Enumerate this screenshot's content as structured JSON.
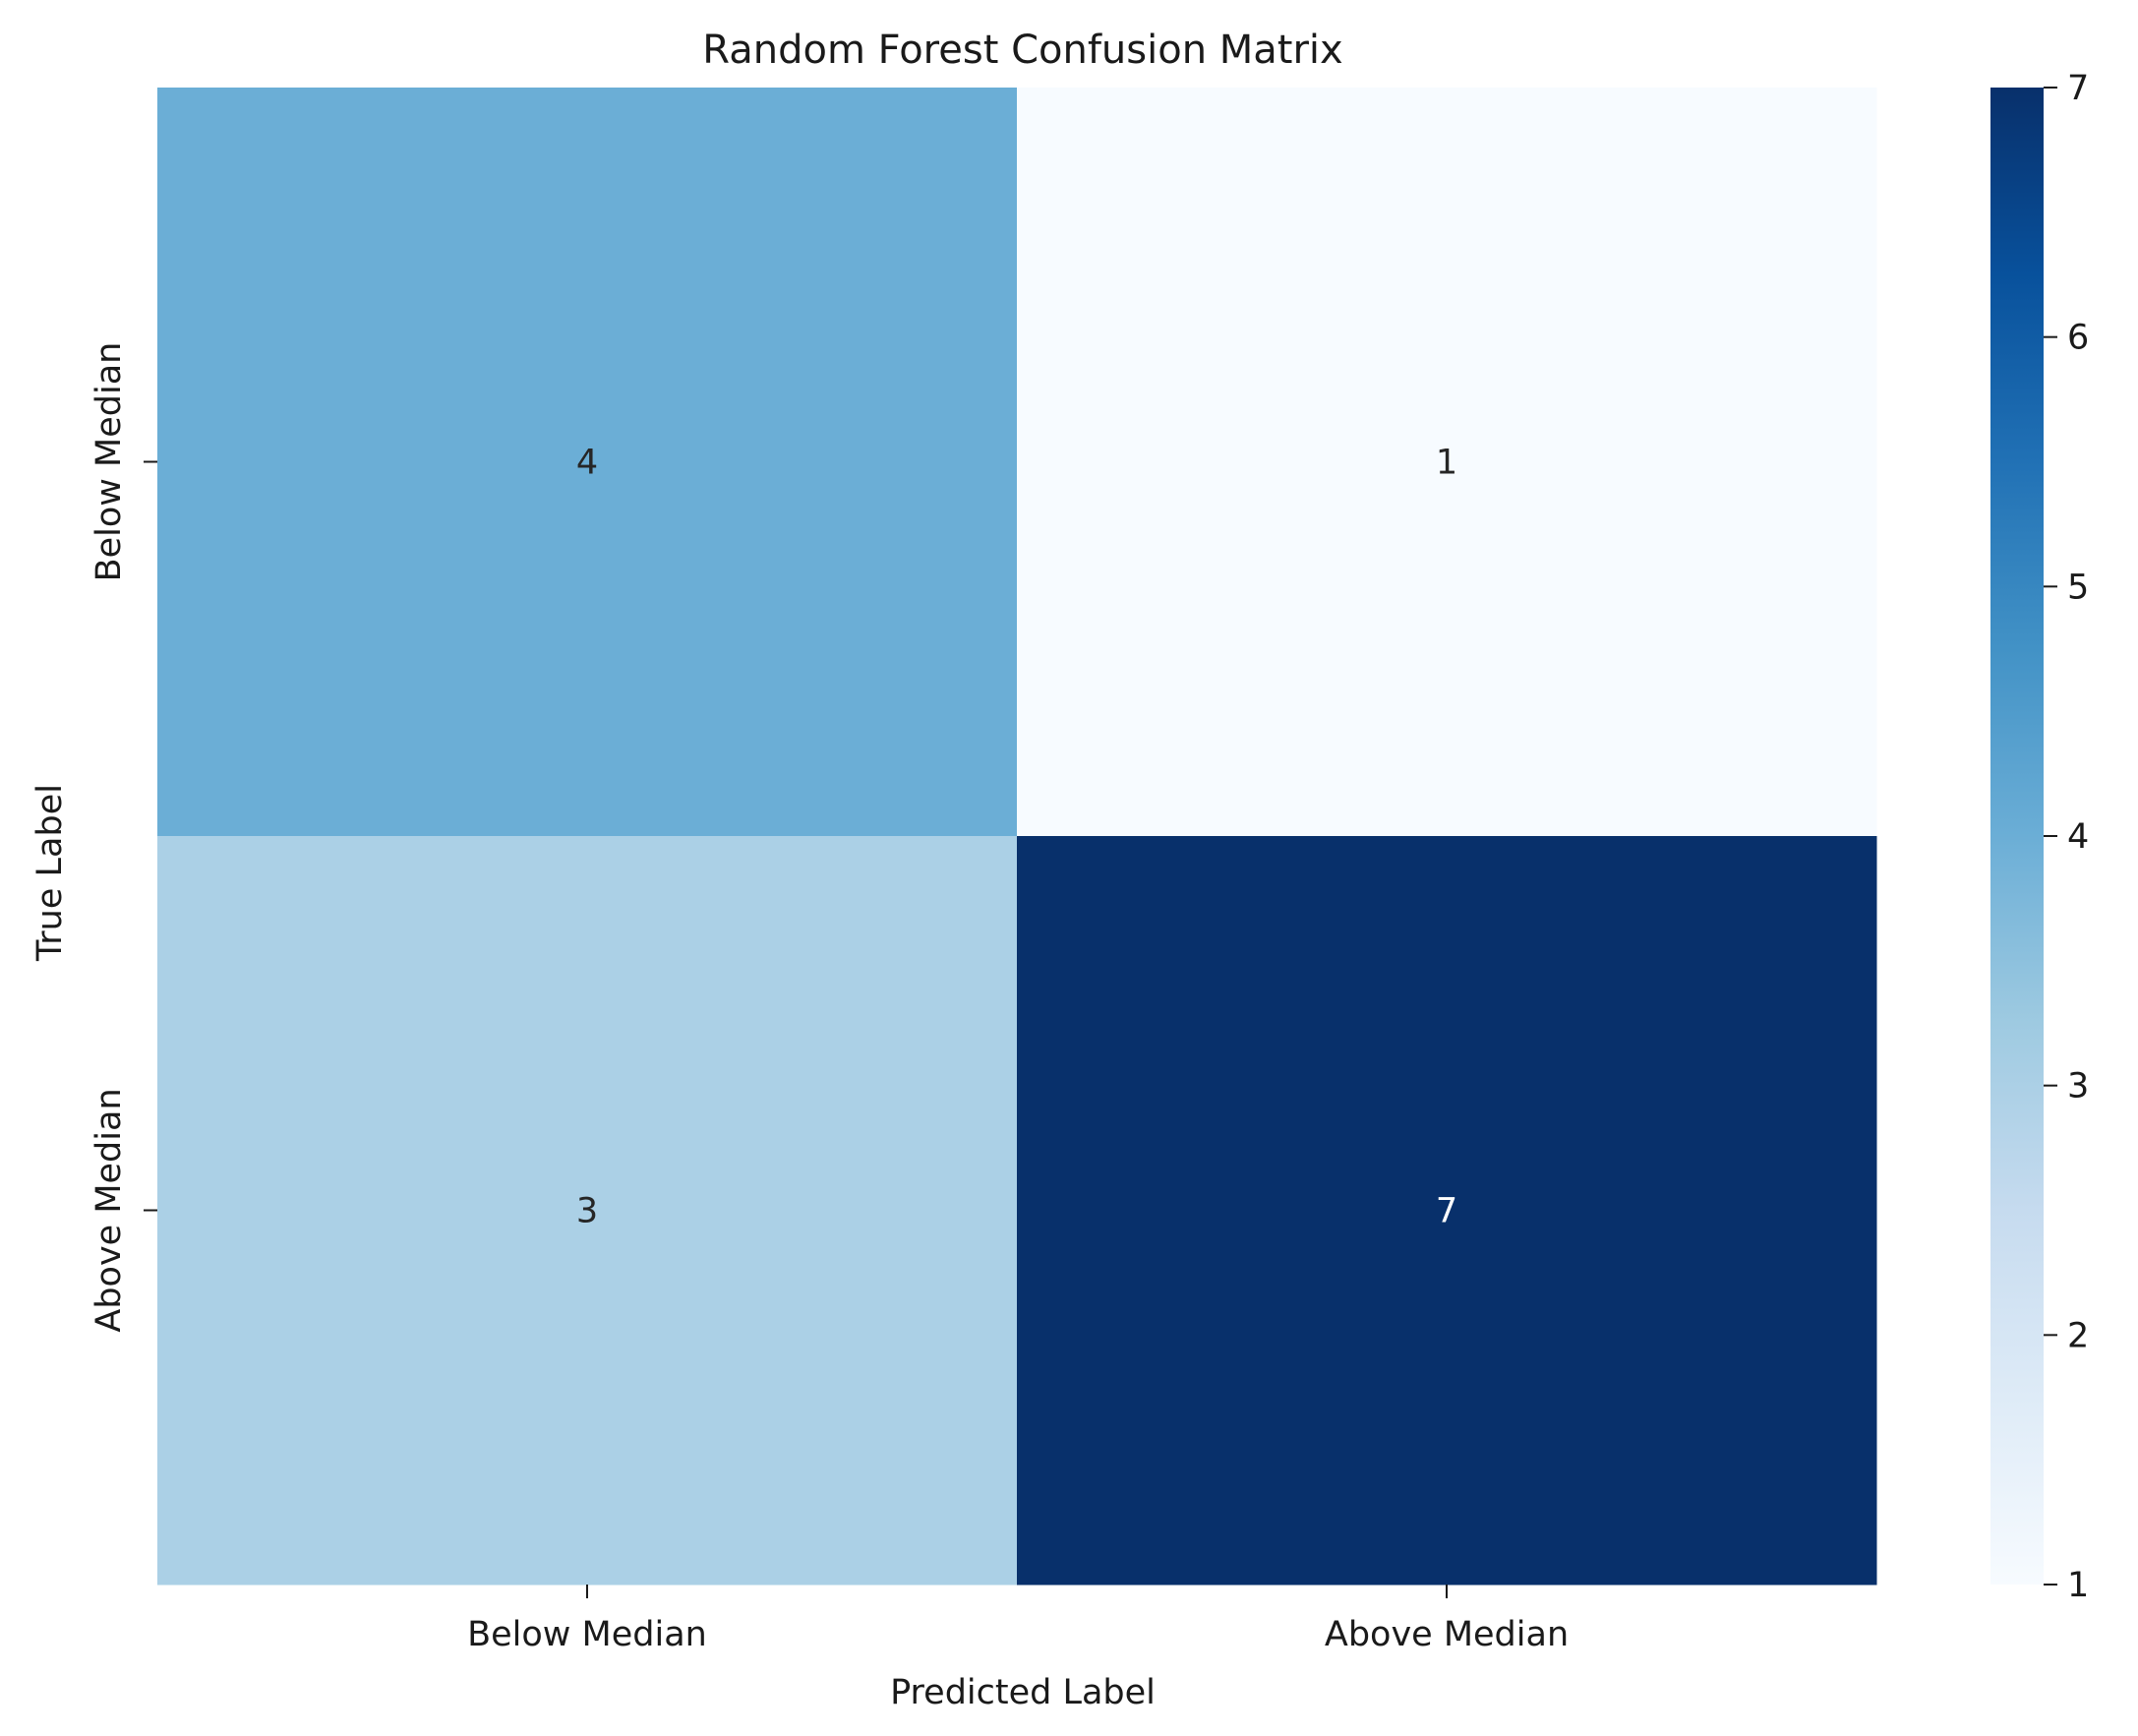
{
  "chart_data": {
    "type": "heatmap",
    "title": "Random Forest Confusion Matrix",
    "xlabel": "Predicted Label",
    "ylabel": "True Label",
    "x_categories": [
      "Below Median",
      "Above Median"
    ],
    "y_categories": [
      "Below Median",
      "Above Median"
    ],
    "values": [
      [
        4,
        1
      ],
      [
        3,
        7
      ]
    ],
    "colorbar": {
      "min": 1,
      "max": 7,
      "ticks": [
        1,
        2,
        3,
        4,
        5,
        6,
        7
      ],
      "colormap": "Blues",
      "position": "right"
    },
    "grid": false
  }
}
